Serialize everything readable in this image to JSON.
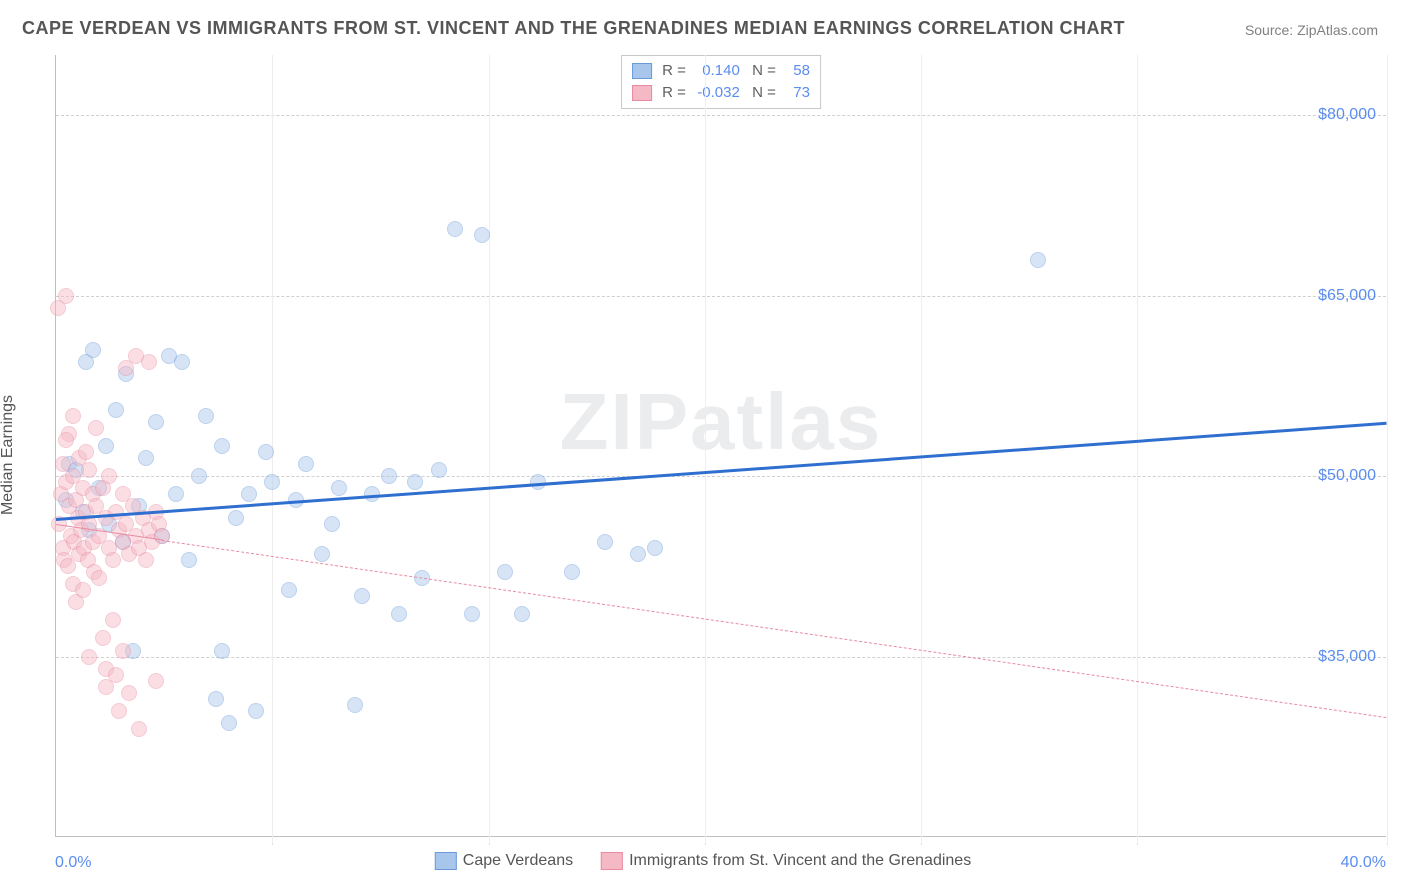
{
  "title": "CAPE VERDEAN VS IMMIGRANTS FROM ST. VINCENT AND THE GRENADINES MEDIAN EARNINGS CORRELATION CHART",
  "source": "Source: ZipAtlas.com",
  "ylabel": "Median Earnings",
  "watermark": "ZIPatlas",
  "chart": {
    "type": "scatter",
    "xlim": [
      0,
      40
    ],
    "ylim": [
      20000,
      85000
    ],
    "background_color": "#ffffff",
    "grid_color": "#d0d0d0",
    "yticks": [
      35000,
      50000,
      65000,
      80000
    ],
    "ytick_labels": [
      "$35,000",
      "$50,000",
      "$65,000",
      "$80,000"
    ],
    "xtick_positions": [
      0,
      6.5,
      13,
      19.5,
      26,
      32.5,
      40
    ],
    "xtick_labels_visible": {
      "start": "0.0%",
      "end": "40.0%"
    },
    "marker_radius": 8,
    "marker_opacity": 0.45,
    "series": [
      {
        "name": "Cape Verdeans",
        "fill_color": "#a8c5ec",
        "stroke_color": "#6a9bd8",
        "trend_color": "#2f6fd0",
        "trend_width": 3,
        "trend_dashed": false,
        "trend_start_y": 46500,
        "trend_end_y": 54500,
        "trend_data_end_x": 40,
        "r": "0.140",
        "n": "58",
        "points": [
          [
            0.3,
            48000
          ],
          [
            0.4,
            51000
          ],
          [
            0.6,
            50500
          ],
          [
            0.8,
            47000
          ],
          [
            0.9,
            59500
          ],
          [
            1.0,
            45500
          ],
          [
            1.1,
            60500
          ],
          [
            1.3,
            49000
          ],
          [
            1.5,
            52500
          ],
          [
            1.6,
            46000
          ],
          [
            1.8,
            55500
          ],
          [
            2.0,
            44500
          ],
          [
            2.1,
            58500
          ],
          [
            2.3,
            35500
          ],
          [
            2.5,
            47500
          ],
          [
            2.7,
            51500
          ],
          [
            3.0,
            54500
          ],
          [
            3.2,
            45000
          ],
          [
            3.4,
            60000
          ],
          [
            3.6,
            48500
          ],
          [
            3.8,
            59500
          ],
          [
            4.0,
            43000
          ],
          [
            4.3,
            50000
          ],
          [
            4.5,
            55000
          ],
          [
            4.8,
            31500
          ],
          [
            5.0,
            52500
          ],
          [
            5.0,
            35500
          ],
          [
            5.2,
            29500
          ],
          [
            5.4,
            46500
          ],
          [
            5.8,
            48500
          ],
          [
            6.0,
            30500
          ],
          [
            6.3,
            52000
          ],
          [
            6.5,
            49500
          ],
          [
            7.0,
            40500
          ],
          [
            7.2,
            48000
          ],
          [
            7.5,
            51000
          ],
          [
            8.0,
            43500
          ],
          [
            8.3,
            46000
          ],
          [
            8.5,
            49000
          ],
          [
            9.0,
            31000
          ],
          [
            9.2,
            40000
          ],
          [
            9.5,
            48500
          ],
          [
            10.0,
            50000
          ],
          [
            10.3,
            38500
          ],
          [
            10.8,
            49500
          ],
          [
            11.0,
            41500
          ],
          [
            11.5,
            50500
          ],
          [
            12.0,
            70500
          ],
          [
            12.5,
            38500
          ],
          [
            12.8,
            70000
          ],
          [
            13.5,
            42000
          ],
          [
            14.0,
            38500
          ],
          [
            14.5,
            49500
          ],
          [
            15.5,
            42000
          ],
          [
            16.5,
            44500
          ],
          [
            17.5,
            43500
          ],
          [
            18.0,
            44000
          ],
          [
            29.5,
            68000
          ]
        ]
      },
      {
        "name": "Immigrants from St. Vincent and the Grenadines",
        "fill_color": "#f5b8c5",
        "stroke_color": "#e88ba0",
        "trend_color": "#e88ba0",
        "trend_width": 1,
        "trend_dashed": true,
        "trend_start_y": 46000,
        "trend_end_y": 30000,
        "trend_data_end_x": 3.2,
        "r": "-0.032",
        "n": "73",
        "points": [
          [
            0.1,
            46000
          ],
          [
            0.15,
            48500
          ],
          [
            0.2,
            44000
          ],
          [
            0.2,
            51000
          ],
          [
            0.25,
            43000
          ],
          [
            0.3,
            49500
          ],
          [
            0.3,
            65000
          ],
          [
            0.35,
            42500
          ],
          [
            0.4,
            47500
          ],
          [
            0.4,
            53500
          ],
          [
            0.45,
            45000
          ],
          [
            0.5,
            41000
          ],
          [
            0.5,
            50000
          ],
          [
            0.55,
            44500
          ],
          [
            0.6,
            39500
          ],
          [
            0.6,
            48000
          ],
          [
            0.65,
            46500
          ],
          [
            0.7,
            43500
          ],
          [
            0.7,
            51500
          ],
          [
            0.75,
            45500
          ],
          [
            0.8,
            40500
          ],
          [
            0.8,
            49000
          ],
          [
            0.85,
            44000
          ],
          [
            0.9,
            47000
          ],
          [
            0.9,
            52000
          ],
          [
            0.95,
            43000
          ],
          [
            1.0,
            46000
          ],
          [
            1.0,
            50500
          ],
          [
            1.0,
            35000
          ],
          [
            1.1,
            44500
          ],
          [
            1.1,
            48500
          ],
          [
            1.15,
            42000
          ],
          [
            1.2,
            47500
          ],
          [
            1.2,
            54000
          ],
          [
            1.3,
            45000
          ],
          [
            1.3,
            41500
          ],
          [
            1.4,
            49000
          ],
          [
            1.4,
            36500
          ],
          [
            1.5,
            34000
          ],
          [
            1.5,
            32500
          ],
          [
            1.5,
            46500
          ],
          [
            1.6,
            44000
          ],
          [
            1.6,
            50000
          ],
          [
            1.7,
            43000
          ],
          [
            1.7,
            38000
          ],
          [
            1.8,
            47000
          ],
          [
            1.8,
            33500
          ],
          [
            1.9,
            45500
          ],
          [
            1.9,
            30500
          ],
          [
            2.0,
            44500
          ],
          [
            2.0,
            48500
          ],
          [
            2.0,
            35500
          ],
          [
            2.1,
            46000
          ],
          [
            2.1,
            59000
          ],
          [
            2.2,
            43500
          ],
          [
            2.2,
            32000
          ],
          [
            2.3,
            47500
          ],
          [
            2.4,
            45000
          ],
          [
            2.4,
            60000
          ],
          [
            2.5,
            44000
          ],
          [
            2.5,
            29000
          ],
          [
            2.6,
            46500
          ],
          [
            2.7,
            43000
          ],
          [
            2.8,
            59500
          ],
          [
            2.8,
            45500
          ],
          [
            2.9,
            44500
          ],
          [
            3.0,
            47000
          ],
          [
            3.0,
            33000
          ],
          [
            3.1,
            46000
          ],
          [
            3.2,
            45000
          ],
          [
            0.05,
            64000
          ],
          [
            0.3,
            53000
          ],
          [
            0.5,
            55000
          ]
        ]
      }
    ]
  },
  "legend_bottom": [
    {
      "label": "Cape Verdeans",
      "fill": "#a8c5ec",
      "stroke": "#6a9bd8"
    },
    {
      "label": "Immigrants from St. Vincent and the Grenadines",
      "fill": "#f5b8c5",
      "stroke": "#e88ba0"
    }
  ]
}
